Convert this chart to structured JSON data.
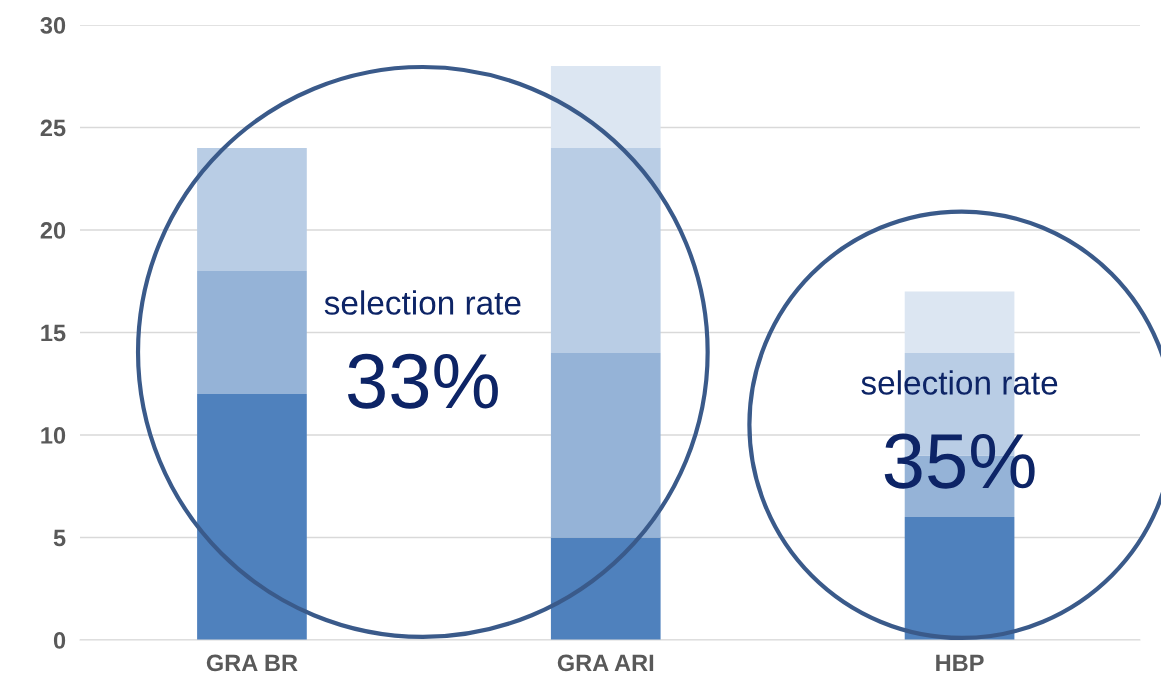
{
  "chart_data": {
    "type": "bar",
    "stacked": true,
    "categories": [
      "GRA BR",
      "GRA ARI",
      "HBP"
    ],
    "series": [
      {
        "color": "#4f81bd",
        "values": [
          12,
          5,
          6
        ]
      },
      {
        "color": "#95b3d7",
        "values": [
          6,
          9,
          3
        ]
      },
      {
        "color": "#b9cde5",
        "values": [
          6,
          10,
          5
        ]
      },
      {
        "color": "#dce6f2",
        "values": [
          null,
          4,
          3
        ]
      }
    ],
    "ylim": [
      0,
      30
    ],
    "yticks": [
      0,
      5,
      10,
      15,
      20,
      25,
      30
    ],
    "grid": "y",
    "legend": false,
    "annotations": [
      "selection rate",
      "33%",
      "selection rate",
      "35%"
    ]
  }
}
